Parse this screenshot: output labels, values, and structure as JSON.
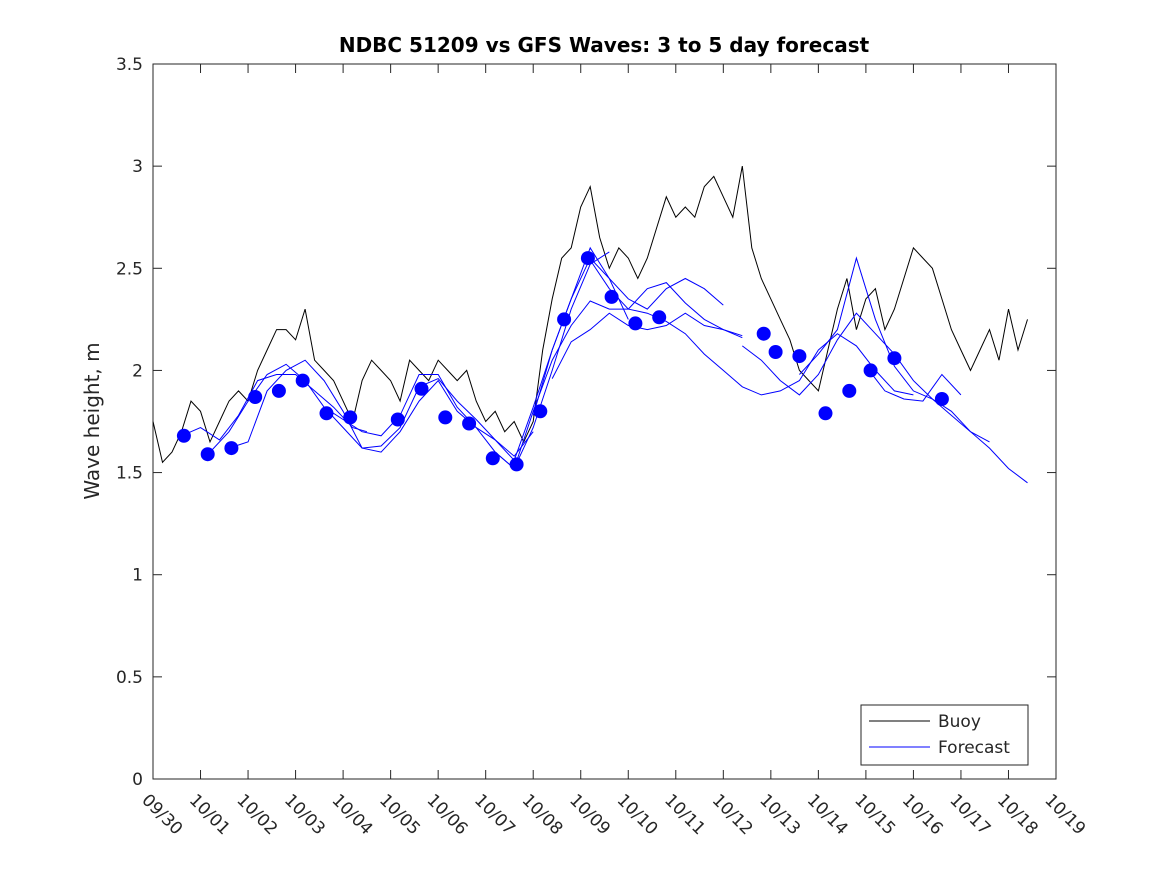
{
  "chart_data": {
    "type": "line",
    "title": "NDBC 51209 vs GFS Waves: 3 to 5 day forecast",
    "xlabel": "",
    "ylabel": "Wave height, m",
    "xlim": [
      0,
      19
    ],
    "ylim": [
      0,
      3.5
    ],
    "grid": false,
    "legend_position": "bottom-right",
    "x_tick_labels": [
      "09/30",
      "10/01",
      "10/02",
      "10/03",
      "10/04",
      "10/05",
      "10/06",
      "10/07",
      "10/08",
      "10/09",
      "10/10",
      "10/11",
      "10/12",
      "10/13",
      "10/14",
      "10/15",
      "10/16",
      "10/17",
      "10/18",
      "10/19"
    ],
    "y_ticks": [
      0,
      0.5,
      1,
      1.5,
      2,
      2.5,
      3,
      3.5
    ],
    "y_tick_labels": [
      "0",
      "0.5",
      "1",
      "1.5",
      "2",
      "2.5",
      "3",
      "3.5"
    ],
    "legend": [
      "Buoy",
      "Forecast"
    ],
    "colors": {
      "buoy": "#000000",
      "forecast": "#0000ff",
      "axes": "#262626"
    },
    "series": [
      {
        "name": "Buoy",
        "x": [
          0,
          0.2,
          0.4,
          0.6,
          0.8,
          1.0,
          1.2,
          1.4,
          1.6,
          1.8,
          2.0,
          2.2,
          2.4,
          2.6,
          2.8,
          3.0,
          3.2,
          3.4,
          3.6,
          3.8,
          4.0,
          4.2,
          4.4,
          4.6,
          4.8,
          5.0,
          5.2,
          5.4,
          5.6,
          5.8,
          6.0,
          6.2,
          6.4,
          6.6,
          6.8,
          7.0,
          7.2,
          7.4,
          7.6,
          7.8,
          8.0,
          8.2,
          8.4,
          8.6,
          8.8,
          9.0,
          9.2,
          9.4,
          9.6,
          9.8,
          10.0,
          10.2,
          10.4,
          10.6,
          10.8,
          11.0,
          11.2,
          11.4,
          11.6,
          11.8,
          12.0,
          12.2,
          12.4,
          12.6,
          12.8,
          13.0,
          13.2,
          13.4,
          13.6,
          13.8,
          14.0,
          14.2,
          14.4,
          14.6,
          14.8,
          15.0,
          15.2,
          15.4,
          15.6,
          15.8,
          16.0,
          16.2,
          16.4,
          16.6,
          16.8,
          17.0,
          17.2,
          17.4,
          17.6,
          17.8,
          18.0,
          18.2,
          18.4
        ],
        "values": [
          1.75,
          1.55,
          1.6,
          1.7,
          1.85,
          1.8,
          1.65,
          1.75,
          1.85,
          1.9,
          1.85,
          2.0,
          2.1,
          2.2,
          2.2,
          2.15,
          2.3,
          2.05,
          2.0,
          1.95,
          1.85,
          1.75,
          1.95,
          2.05,
          2.0,
          1.95,
          1.85,
          2.05,
          2.0,
          1.95,
          2.05,
          2.0,
          1.95,
          2.0,
          1.85,
          1.75,
          1.8,
          1.7,
          1.75,
          1.65,
          1.75,
          2.1,
          2.35,
          2.55,
          2.6,
          2.8,
          2.9,
          2.65,
          2.5,
          2.6,
          2.55,
          2.45,
          2.55,
          2.7,
          2.85,
          2.75,
          2.8,
          2.75,
          2.9,
          2.95,
          2.85,
          2.75,
          3.0,
          2.6,
          2.45,
          2.35,
          2.25,
          2.15,
          2.0,
          1.95,
          1.9,
          2.1,
          2.3,
          2.45,
          2.2,
          2.35,
          2.4,
          2.2,
          2.3,
          2.45,
          2.6,
          2.55,
          2.5,
          2.35,
          2.2,
          2.1,
          2.0,
          2.1,
          2.2,
          2.05,
          2.3,
          2.1,
          2.25
        ]
      },
      {
        "name": "Forecast",
        "runs": [
          {
            "x": [
              0.6,
              1.0,
              1.4,
              1.8,
              2.2,
              2.6,
              3.0,
              3.4,
              3.8,
              4.2,
              4.5
            ],
            "values": [
              1.68,
              1.72,
              1.66,
              1.78,
              1.95,
              1.98,
              1.98,
              1.9,
              1.82,
              1.72,
              1.7
            ]
          },
          {
            "x": [
              1.2,
              1.6,
              2.0,
              2.4,
              2.8,
              3.2,
              3.6,
              4.0,
              4.4,
              4.8,
              5.2,
              5.6,
              6.0,
              6.4,
              6.8,
              7.2,
              7.6,
              8.0
            ],
            "values": [
              1.6,
              1.7,
              1.85,
              1.98,
              2.03,
              1.95,
              1.82,
              1.72,
              1.62,
              1.63,
              1.72,
              1.92,
              1.96,
              1.85,
              1.76,
              1.66,
              1.58,
              1.7
            ]
          },
          {
            "x": [
              1.6,
              2.0,
              2.4,
              2.8,
              3.2,
              3.6,
              4.0,
              4.4,
              4.8,
              5.2,
              5.6,
              6.0,
              6.4,
              6.8,
              7.2,
              7.6,
              8.0,
              8.4,
              8.8,
              9.2,
              9.6
            ],
            "values": [
              1.62,
              1.65,
              1.9,
              2.0,
              2.05,
              1.95,
              1.8,
              1.62,
              1.6,
              1.7,
              1.85,
              1.95,
              1.8,
              1.72,
              1.6,
              1.52,
              1.72,
              2.0,
              2.3,
              2.52,
              2.58
            ]
          },
          {
            "x": [
              3.6,
              4.0,
              4.4,
              4.8,
              5.2,
              5.6,
              6.0,
              6.4,
              6.8,
              7.2,
              7.6,
              8.0,
              8.4,
              8.8,
              9.2,
              9.6,
              10.0
            ],
            "values": [
              1.82,
              1.76,
              1.7,
              1.68,
              1.78,
              1.98,
              1.98,
              1.82,
              1.72,
              1.66,
              1.56,
              1.82,
              2.1,
              2.35,
              2.55,
              2.45,
              2.25
            ]
          },
          {
            "x": [
              7.2,
              7.6,
              8.0,
              8.4,
              8.8,
              9.2,
              9.6,
              10.0,
              10.4,
              10.8,
              11.2,
              11.6,
              12.0,
              12.4
            ],
            "values": [
              1.6,
              1.52,
              1.8,
              2.05,
              2.22,
              2.34,
              2.3,
              2.3,
              2.4,
              2.43,
              2.33,
              2.25,
              2.2,
              2.16
            ]
          },
          {
            "x": [
              8.0,
              8.4,
              8.8,
              9.2,
              9.6,
              10.0,
              10.4,
              10.8,
              11.2,
              11.6,
              12.0
            ],
            "values": [
              1.78,
              2.1,
              2.35,
              2.6,
              2.45,
              2.35,
              2.3,
              2.4,
              2.45,
              2.4,
              2.32
            ]
          },
          {
            "x": [
              8.4,
              8.8,
              9.2,
              9.6,
              10.0,
              10.4,
              10.8,
              11.2,
              11.6,
              12.0,
              12.4
            ],
            "values": [
              1.96,
              2.14,
              2.2,
              2.28,
              2.22,
              2.2,
              2.22,
              2.28,
              2.22,
              2.2,
              2.17
            ]
          },
          {
            "x": [
              9.2,
              9.6,
              10.0,
              10.4,
              10.8,
              11.2,
              11.6,
              12.0,
              12.4,
              12.8,
              13.2,
              13.6,
              14.0,
              14.4,
              14.8,
              15.2,
              15.6,
              16.0
            ],
            "values": [
              2.54,
              2.4,
              2.3,
              2.28,
              2.24,
              2.18,
              2.08,
              2.0,
              1.92,
              1.88,
              1.9,
              1.95,
              2.1,
              2.18,
              2.12,
              2.0,
              1.9,
              1.88
            ]
          },
          {
            "x": [
              12.4,
              12.8,
              13.2,
              13.6,
              14.0,
              14.4,
              14.8,
              15.2,
              15.6,
              16.0,
              16.4,
              16.8,
              17.2,
              17.6,
              18.0,
              18.4
            ],
            "values": [
              2.12,
              2.05,
              1.95,
              1.88,
              1.98,
              2.15,
              2.28,
              2.18,
              2.08,
              1.95,
              1.86,
              1.8,
              1.7,
              1.62,
              1.52,
              1.45
            ]
          },
          {
            "x": [
              13.6,
              14.0,
              14.4,
              14.8,
              15.2,
              15.6,
              16.0,
              16.4,
              16.8,
              17.2,
              17.6
            ],
            "values": [
              1.98,
              2.08,
              2.2,
              2.55,
              2.25,
              2.02,
              1.9,
              1.86,
              1.78,
              1.7,
              1.65
            ]
          },
          {
            "x": [
              15.0,
              15.4,
              15.8,
              16.2,
              16.6,
              17.0
            ],
            "values": [
              2.02,
              1.9,
              1.86,
              1.85,
              1.98,
              1.88
            ]
          }
        ]
      },
      {
        "name": "Forecast markers",
        "x": [
          0.65,
          1.15,
          1.65,
          2.15,
          2.65,
          3.15,
          3.65,
          4.15,
          5.15,
          5.65,
          6.15,
          6.65,
          7.15,
          7.65,
          8.15,
          8.65,
          9.15,
          9.65,
          10.15,
          10.65,
          12.85,
          13.1,
          13.6,
          14.15,
          14.65,
          15.1,
          15.6,
          16.6
        ],
        "values": [
          1.68,
          1.59,
          1.62,
          1.87,
          1.9,
          1.95,
          1.79,
          1.77,
          1.76,
          1.91,
          1.77,
          1.74,
          1.57,
          1.54,
          1.8,
          2.25,
          2.55,
          2.36,
          2.23,
          2.26,
          2.18,
          2.09,
          2.07,
          1.79,
          1.9,
          2.0,
          2.06,
          1.86
        ]
      }
    ]
  }
}
